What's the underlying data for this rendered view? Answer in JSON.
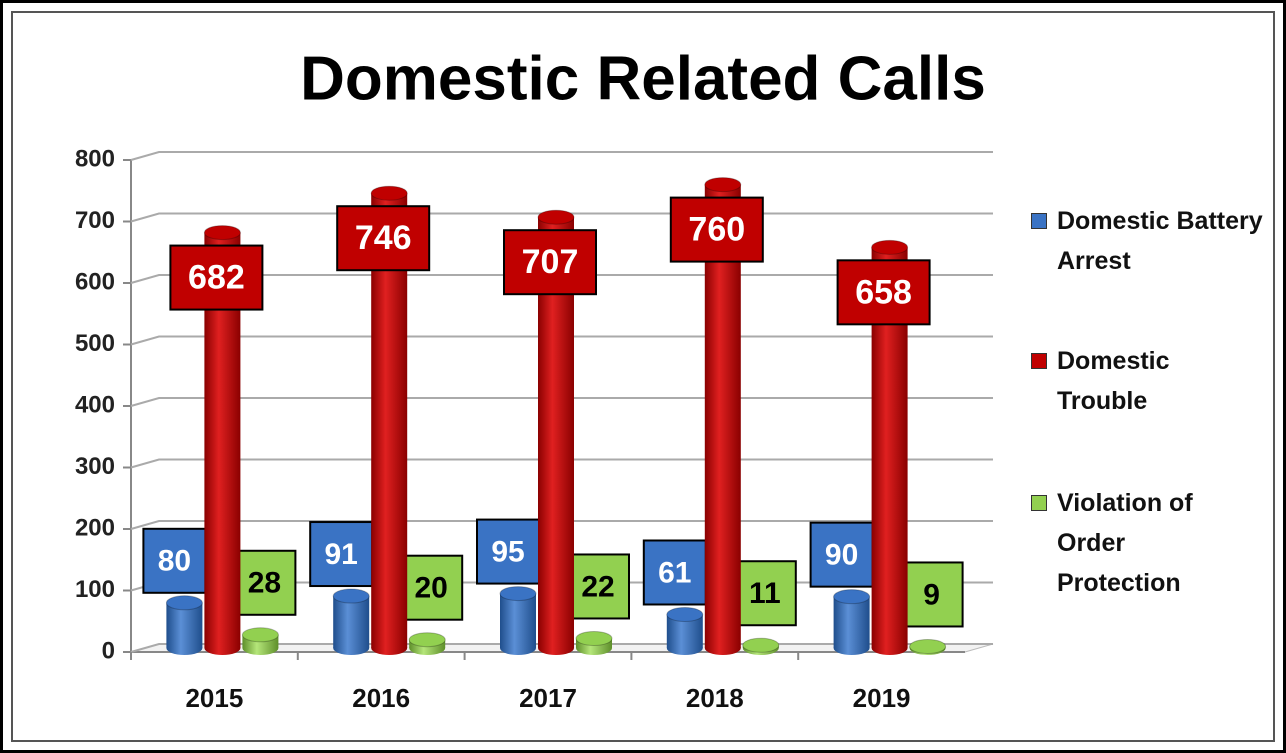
{
  "chart_data": {
    "type": "bar",
    "title": "Domestic Related Calls",
    "categories": [
      "2015",
      "2016",
      "2017",
      "2018",
      "2019"
    ],
    "series": [
      {
        "name": "Domestic Battery Arrest",
        "color": "#3a73c4",
        "values": [
          80,
          91,
          95,
          61,
          90
        ]
      },
      {
        "name": "Domestic Trouble",
        "color": "#c00000",
        "values": [
          682,
          746,
          707,
          760,
          658
        ]
      },
      {
        "name": "Violation of Order Protection",
        "color": "#92d050",
        "values": [
          28,
          20,
          22,
          11,
          9
        ]
      }
    ],
    "ylim": [
      0,
      800
    ],
    "yticks": [
      0,
      100,
      200,
      300,
      400,
      500,
      600,
      700,
      800
    ],
    "grid": true,
    "legend": "right"
  }
}
